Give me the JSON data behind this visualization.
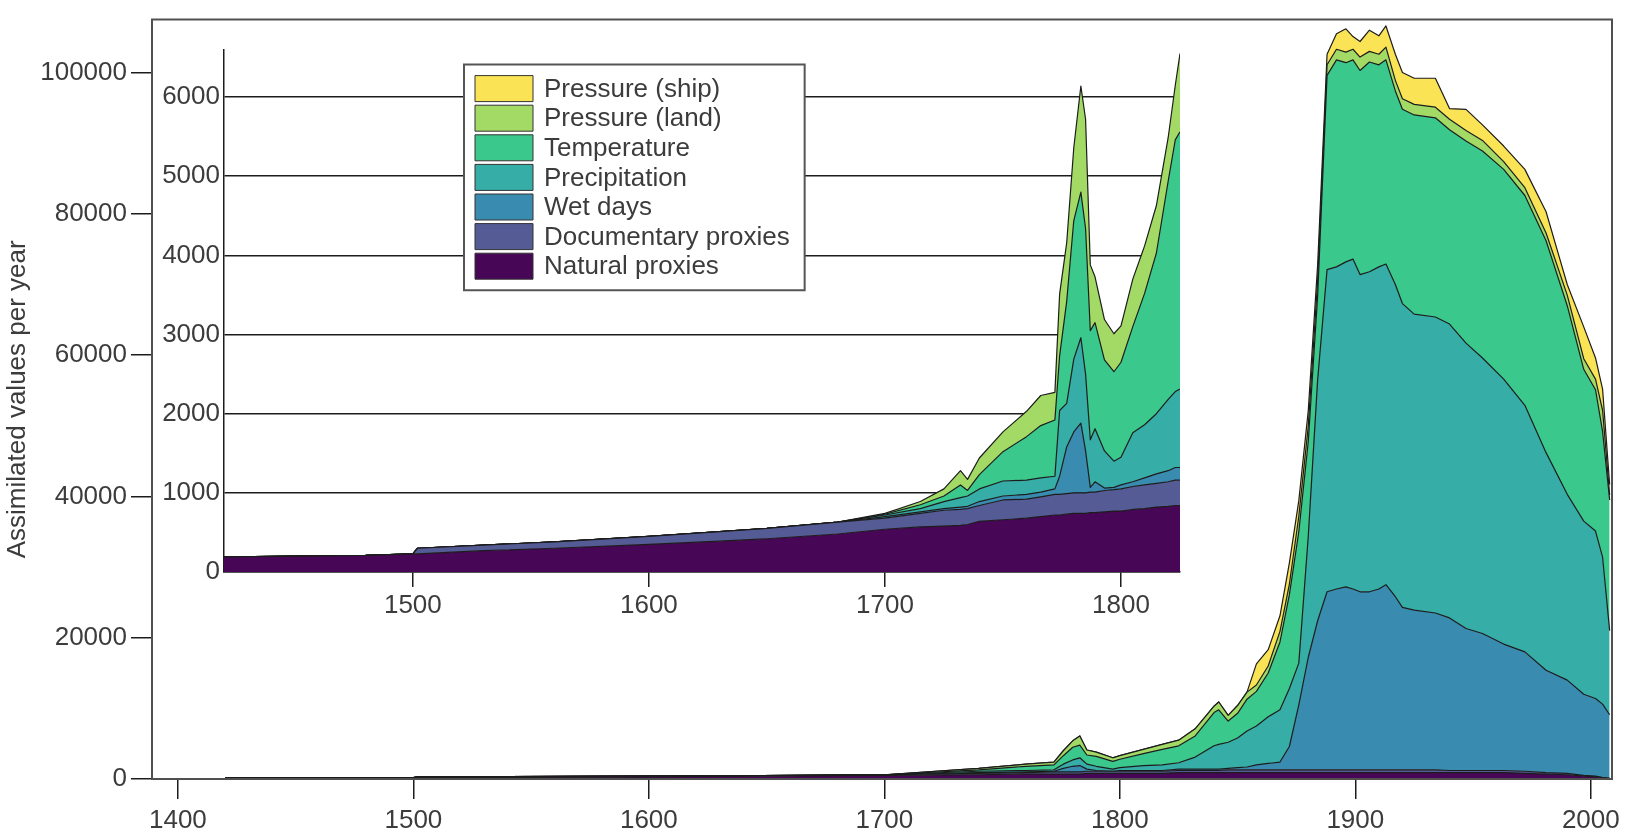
{
  "chart_data": [
    {
      "type": "area",
      "stacked": true,
      "legend": "top left",
      "ylabel": "Assimilated values per year",
      "xlim": [
        1389,
        2009
      ],
      "xticks": [
        1400,
        1500,
        1600,
        1700,
        1800,
        1900,
        2000
      ],
      "ylim": [
        0,
        107500
      ],
      "yticks": [
        0,
        20000,
        40000,
        60000,
        80000,
        100000
      ],
      "x": [
        1420,
        1500,
        1502,
        1600,
        1700,
        1740,
        1760,
        1772,
        1776,
        1780,
        1783,
        1786,
        1790,
        1797,
        1800,
        1810,
        1818,
        1825,
        1832,
        1840,
        1842,
        1846,
        1850,
        1854,
        1858,
        1863,
        1868,
        1872,
        1876,
        1880,
        1884,
        1888,
        1892,
        1896,
        1899,
        1902,
        1906,
        1910,
        1913,
        1917,
        1920,
        1925,
        1934,
        1940,
        1947,
        1954,
        1963,
        1972,
        1981,
        1990,
        1997,
        2002,
        2005,
        2008
      ],
      "series": [
        {
          "name": "Natural proxies",
          "color": "#480656",
          "values": [
            200,
            200,
            200,
            300,
            500,
            600,
            700,
            700,
            700,
            700,
            700,
            800,
            800,
            800,
            800,
            800,
            800,
            900,
            900,
            900,
            900,
            900,
            900,
            900,
            900,
            900,
            900,
            900,
            900,
            900,
            900,
            900,
            900,
            900,
            900,
            900,
            900,
            900,
            900,
            900,
            900,
            900,
            900,
            900,
            900,
            900,
            900,
            800,
            700,
            600,
            400,
            300,
            200,
            100
          ]
        },
        {
          "name": "Documentary proxies",
          "color": "#555c95",
          "values": [
            0,
            0,
            100,
            100,
            100,
            200,
            200,
            300,
            300,
            300,
            300,
            300,
            300,
            300,
            300,
            300,
            300,
            300,
            300,
            300,
            300,
            400,
            400,
            400,
            400,
            400,
            400,
            400,
            400,
            400,
            400,
            400,
            400,
            400,
            400,
            400,
            400,
            400,
            400,
            400,
            400,
            400,
            400,
            300,
            300,
            300,
            300,
            300,
            200,
            200,
            100,
            100,
            0,
            0
          ]
        },
        {
          "name": "Wet days",
          "color": "#3a8bb0",
          "values": [
            0,
            0,
            0,
            0,
            0,
            100,
            100,
            100,
            500,
            800,
            900,
            300,
            100,
            0,
            100,
            100,
            100,
            200,
            200,
            200,
            200,
            200,
            300,
            400,
            700,
            900,
            1100,
            3300,
            9200,
            15900,
            21100,
            25200,
            25600,
            25900,
            25600,
            25200,
            25200,
            25600,
            26200,
            24500,
            23000,
            22600,
            22200,
            21600,
            20100,
            19400,
            17900,
            16900,
            14500,
            13200,
            11500,
            11000,
            10400,
            9000
          ]
        },
        {
          "name": "Precipitation",
          "color": "#36ada6",
          "values": [
            0,
            0,
            0,
            0,
            0,
            200,
            200,
            200,
            600,
            900,
            1100,
            700,
            600,
            300,
            400,
            700,
            800,
            900,
            1700,
            3300,
            3500,
            3700,
            4200,
            5100,
            5500,
            6600,
            7400,
            8200,
            5900,
            17100,
            34100,
            45600,
            45600,
            46000,
            46700,
            44900,
            45300,
            45600,
            45400,
            44200,
            43000,
            41900,
            41900,
            41600,
            40400,
            39000,
            37500,
            34900,
            30800,
            26300,
            24500,
            23700,
            20800,
            11900
          ]
        },
        {
          "name": "Temperature",
          "color": "#3ac88c",
          "values": [
            0,
            0,
            0,
            0,
            0,
            200,
            600,
            700,
            1200,
            1800,
            1800,
            1300,
            1400,
            1100,
            1200,
            1700,
            2200,
            2400,
            3000,
            4700,
            4900,
            3000,
            3500,
            4500,
            4900,
            6200,
            9600,
            13300,
            18600,
            13400,
            11900,
            27500,
            29300,
            28200,
            28200,
            28900,
            29700,
            28600,
            28900,
            27400,
            27500,
            28200,
            28200,
            27500,
            28600,
            29300,
            29700,
            29700,
            30000,
            26700,
            21500,
            20000,
            17800,
            18500
          ]
        },
        {
          "name": "Pressure (land)",
          "color": "#a3da66",
          "values": [
            0,
            0,
            0,
            0,
            0,
            200,
            300,
            400,
            700,
            900,
            1300,
            700,
            600,
            500,
            500,
            600,
            700,
            800,
            1000,
            900,
            1100,
            800,
            1100,
            1000,
            900,
            1000,
            1500,
            1500,
            2200,
            2200,
            2200,
            1500,
            1500,
            1500,
            1500,
            1900,
            1500,
            1500,
            1800,
            1500,
            1500,
            1500,
            1500,
            1500,
            1500,
            1500,
            1100,
            1100,
            1100,
            1500,
            1500,
            1500,
            3000,
            700
          ]
        },
        {
          "name": "Pressure (ship)",
          "color": "#fbe356",
          "values": [
            0,
            0,
            0,
            0,
            0,
            0,
            0,
            0,
            0,
            0,
            0,
            0,
            0,
            0,
            0,
            0,
            0,
            0,
            0,
            0,
            0,
            0,
            0,
            0,
            3000,
            2300,
            2200,
            3000,
            2200,
            2200,
            2200,
            1500,
            2200,
            3300,
            1800,
            2200,
            3000,
            2600,
            3000,
            3700,
            3700,
            3700,
            4100,
            1500,
            3000,
            2200,
            2200,
            2600,
            3000,
            1500,
            4500,
            3000,
            3000,
            1500
          ]
        }
      ]
    },
    {
      "type": "area",
      "stacked": true,
      "grid": "y",
      "xlim": [
        1420,
        1825
      ],
      "xticks": [
        1500,
        1600,
        1700,
        1800
      ],
      "ylim": [
        0,
        6600
      ],
      "yticks": [
        0,
        1000,
        2000,
        3000,
        4000,
        5000,
        6000
      ],
      "x": [
        1420,
        1450,
        1480,
        1500,
        1502,
        1530,
        1560,
        1600,
        1630,
        1650,
        1680,
        1700,
        1715,
        1725,
        1732,
        1735,
        1740,
        1750,
        1760,
        1766,
        1772,
        1774,
        1777,
        1780,
        1783,
        1785,
        1787,
        1789,
        1793,
        1797,
        1800,
        1805,
        1810,
        1815,
        1820,
        1823,
        1825
      ],
      "series": [
        {
          "color": "#480656",
          "values": [
            190,
            200,
            210,
            230,
            230,
            270,
            300,
            350,
            390,
            420,
            480,
            540,
            570,
            580,
            590,
            600,
            640,
            660,
            680,
            700,
            720,
            720,
            730,
            740,
            740,
            740,
            750,
            750,
            760,
            770,
            770,
            790,
            800,
            820,
            830,
            840,
            840
          ]
        },
        {
          "color": "#555c95",
          "values": [
            0,
            0,
            0,
            0,
            70,
            70,
            80,
            100,
            120,
            130,
            150,
            140,
            170,
            200,
            200,
            200,
            200,
            250,
            240,
            250,
            260,
            260,
            260,
            260,
            260,
            260,
            260,
            260,
            270,
            270,
            280,
            290,
            300,
            300,
            310,
            320,
            320
          ]
        },
        {
          "color": "#3a8bb0",
          "values": [
            0,
            0,
            0,
            0,
            0,
            0,
            0,
            0,
            0,
            0,
            0,
            20,
            20,
            20,
            30,
            30,
            50,
            50,
            60,
            60,
            70,
            230,
            590,
            770,
            880,
            530,
            60,
            130,
            30,
            30,
            50,
            60,
            90,
            120,
            140,
            160,
            160
          ]
        },
        {
          "color": "#36ada6",
          "values": [
            0,
            0,
            0,
            0,
            0,
            0,
            0,
            0,
            0,
            0,
            0,
            20,
            40,
            90,
            120,
            130,
            160,
            190,
            180,
            180,
            160,
            830,
            550,
            920,
            1080,
            970,
            600,
            670,
            470,
            330,
            350,
            620,
            670,
            760,
            900,
            960,
            990
          ]
        },
        {
          "color": "#3ac88c",
          "values": [
            0,
            0,
            0,
            0,
            0,
            0,
            0,
            0,
            0,
            0,
            0,
            10,
            50,
            70,
            160,
            70,
            180,
            370,
            550,
            660,
            710,
            690,
            1290,
            1750,
            1840,
            1840,
            1380,
            1340,
            1150,
            1130,
            1200,
            1340,
            1660,
            2030,
            2760,
            3180,
            3250
          ]
        },
        {
          "color": "#a3da66",
          "values": [
            0,
            0,
            0,
            0,
            0,
            0,
            0,
            0,
            0,
            0,
            0,
            10,
            40,
            90,
            180,
            140,
            210,
            250,
            320,
            380,
            350,
            780,
            740,
            920,
            1340,
            1380,
            830,
            580,
            510,
            480,
            460,
            600,
            600,
            600,
            550,
            690,
            990
          ]
        }
      ]
    }
  ]
}
